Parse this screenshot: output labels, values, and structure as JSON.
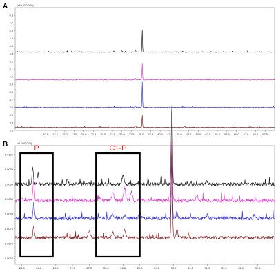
{
  "chart_data": [
    {
      "panel_label": "A",
      "type": "line",
      "multiplier_label": "(x10,000,000)",
      "xlim": [
        2.0,
        70.0
      ],
      "x_ticks": [
        "10.0",
        "12.5",
        "15.0",
        "17.5",
        "20.0",
        "22.5",
        "25.0",
        "27.5",
        "30.0",
        "32.5",
        "35.0",
        "37.5",
        "40.0",
        "42.5",
        "45.0",
        "47.5",
        "50.0",
        "52.5",
        "55.0",
        "57.5",
        "60.0",
        "62.5",
        "65.0",
        "67.5"
      ],
      "x_tick_values": [
        10.0,
        12.5,
        15.0,
        17.5,
        20.0,
        22.5,
        25.0,
        27.5,
        30.0,
        32.5,
        35.0,
        37.5,
        40.0,
        42.5,
        45.0,
        47.5,
        50.0,
        52.5,
        55.0,
        57.5,
        60.0,
        62.5,
        65.0,
        67.5
      ],
      "ylim": [
        3.3,
        4.9
      ],
      "y_ticks": [
        "4.8",
        "4.7",
        "4.6",
        "4.5",
        "4.4",
        "4.3",
        "4.2",
        "4.1",
        "4.0",
        "3.9",
        "3.8",
        "3.7",
        "3.6",
        "3.5",
        "3.4",
        "3.3"
      ],
      "y_tick_values": [
        4.8,
        4.7,
        4.6,
        4.5,
        4.4,
        4.3,
        4.2,
        4.1,
        4.0,
        3.9,
        3.8,
        3.7,
        3.6,
        3.5,
        3.4,
        3.3
      ],
      "series": [
        {
          "color": "#222222",
          "baseline": 4.32,
          "noise": 0.004,
          "peaks": [
            {
              "x": 35.3,
              "h": 0.3,
              "w": 0.1
            },
            {
              "x": 33.5,
              "h": 0.03,
              "w": 0.15
            },
            {
              "x": 30.0,
              "h": 0.015,
              "w": 0.2
            }
          ]
        },
        {
          "color": "#e040d0",
          "baseline": 3.96,
          "noise": 0.004,
          "peaks": [
            {
              "x": 35.3,
              "h": 0.22,
              "w": 0.1
            },
            {
              "x": 33.5,
              "h": 0.02,
              "w": 0.15
            }
          ]
        },
        {
          "color": "#3a3ad8",
          "baseline": 3.6,
          "noise": 0.004,
          "peaks": [
            {
              "x": 35.3,
              "h": 0.34,
              "w": 0.1
            },
            {
              "x": 33.5,
              "h": 0.02,
              "w": 0.15
            }
          ]
        },
        {
          "color": "#8a2a2a",
          "baseline": 3.34,
          "noise": 0.004,
          "peaks": [
            {
              "x": 35.3,
              "h": 0.17,
              "w": 0.1
            },
            {
              "x": 33.5,
              "h": 0.015,
              "w": 0.15
            }
          ]
        }
      ]
    },
    {
      "panel_label": "B",
      "type": "line",
      "multiplier_label": "(x1,000,000)",
      "xlim": [
        25.3,
        33.0
      ],
      "x_ticks": [
        "25.5",
        "26.0",
        "26.5",
        "27.0",
        "27.5",
        "28.0",
        "28.5",
        "29.0",
        "29.5",
        "30.0",
        "30.5",
        "31.0",
        "31.5",
        "32.0",
        "32.5"
      ],
      "x_tick_values": [
        25.5,
        26.0,
        26.5,
        27.0,
        27.5,
        28.0,
        28.5,
        29.0,
        29.5,
        30.0,
        30.5,
        31.0,
        31.5,
        32.0,
        32.5
      ],
      "ylim": [
        1.0063,
        1.0103
      ],
      "y_ticks": [
        "1.0100",
        "1.0095",
        "1.0090",
        "1.0085",
        "1.0080",
        "1.0075",
        "1.0070",
        "1.0065"
      ],
      "y_tick_values": [
        1.01,
        1.0095,
        1.009,
        1.0085,
        1.008,
        1.0075,
        1.007,
        1.0065
      ],
      "series": [
        {
          "color": "#222222",
          "baseline": 1.009,
          "noise": 6e-05,
          "peaks": [
            {
              "x": 25.82,
              "h": 0.00055,
              "w": 0.03
            },
            {
              "x": 25.98,
              "h": 0.0004,
              "w": 0.03
            },
            {
              "x": 26.85,
              "h": 0.00015,
              "w": 0.03
            },
            {
              "x": 28.5,
              "h": 0.0003,
              "w": 0.04
            },
            {
              "x": 29.95,
              "h": 0.0027,
              "w": 0.025
            },
            {
              "x": 31.0,
              "h": 0.0001,
              "w": 0.03
            }
          ]
        },
        {
          "color": "#e040d0",
          "baseline": 1.00845,
          "noise": 6e-05,
          "peaks": [
            {
              "x": 25.85,
              "h": 0.00065,
              "w": 0.03
            },
            {
              "x": 27.8,
              "h": 0.0001,
              "w": 0.03
            },
            {
              "x": 28.2,
              "h": 0.0003,
              "w": 0.04
            },
            {
              "x": 28.55,
              "h": 0.0004,
              "w": 0.04
            },
            {
              "x": 28.75,
              "h": 0.0003,
              "w": 0.04
            },
            {
              "x": 29.95,
              "h": 0.002,
              "w": 0.025
            },
            {
              "x": 30.7,
              "h": 0.0002,
              "w": 0.04
            }
          ]
        },
        {
          "color": "#3a3ad8",
          "baseline": 1.00785,
          "noise": 6e-05,
          "peaks": [
            {
              "x": 25.85,
              "h": 0.0005,
              "w": 0.03
            },
            {
              "x": 28.2,
              "h": 0.00015,
              "w": 0.04
            },
            {
              "x": 28.55,
              "h": 0.0001,
              "w": 0.04
            },
            {
              "x": 29.0,
              "h": 0.0002,
              "w": 0.04
            },
            {
              "x": 29.95,
              "h": 0.002,
              "w": 0.025
            },
            {
              "x": 30.1,
              "h": 0.0002,
              "w": 0.03
            },
            {
              "x": 31.0,
              "h": 0.00015,
              "w": 0.03
            },
            {
              "x": 32.4,
              "h": 0.00015,
              "w": 0.04
            }
          ]
        },
        {
          "color": "#8a2a2a",
          "baseline": 1.0072,
          "noise": 5e-05,
          "peaks": [
            {
              "x": 25.85,
              "h": 0.00035,
              "w": 0.03
            },
            {
              "x": 27.5,
              "h": 0.0002,
              "w": 0.04
            },
            {
              "x": 28.2,
              "h": 0.0002,
              "w": 0.04
            },
            {
              "x": 28.55,
              "h": 0.00025,
              "w": 0.04
            },
            {
              "x": 29.95,
              "h": 0.003,
              "w": 0.025
            },
            {
              "x": 30.1,
              "h": 0.0003,
              "w": 0.03
            }
          ]
        }
      ],
      "annotations": [
        {
          "label": "P",
          "x_range": [
            25.45,
            26.42
          ]
        },
        {
          "label": "C1-P",
          "x_range": [
            27.7,
            29.0
          ]
        }
      ]
    }
  ]
}
